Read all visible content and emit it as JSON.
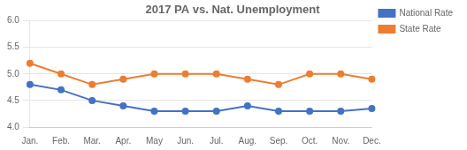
{
  "chart_data": {
    "type": "line",
    "title": "2017 PA vs. Nat. Unemployment",
    "categories": [
      "Jan.",
      "Feb.",
      "Mar.",
      "Apr.",
      "May",
      "Jun.",
      "Jul.",
      "Aug.",
      "Sep.",
      "Oct.",
      "Nov.",
      "Dec."
    ],
    "series": [
      {
        "name": "National Rate",
        "color": "#4472c4",
        "values": [
          4.8,
          4.7,
          4.5,
          4.4,
          4.3,
          4.3,
          4.3,
          4.4,
          4.3,
          4.3,
          4.3,
          4.35
        ]
      },
      {
        "name": "State Rate",
        "color": "#ed7d31",
        "values": [
          5.2,
          5.0,
          4.8,
          4.9,
          5.0,
          5.0,
          5.0,
          4.9,
          4.8,
          5.0,
          5.0,
          4.9
        ]
      }
    ],
    "ylim": [
      4.0,
      6.0
    ],
    "yticks": [
      {
        "value": 4.0,
        "label": "4.0"
      },
      4.5,
      {
        "value": 5.0,
        "label": "5.0"
      },
      5.5,
      {
        "value": 6.0,
        "label": "6.0"
      }
    ],
    "grid": "y",
    "legend": "right",
    "marker": "circle"
  }
}
